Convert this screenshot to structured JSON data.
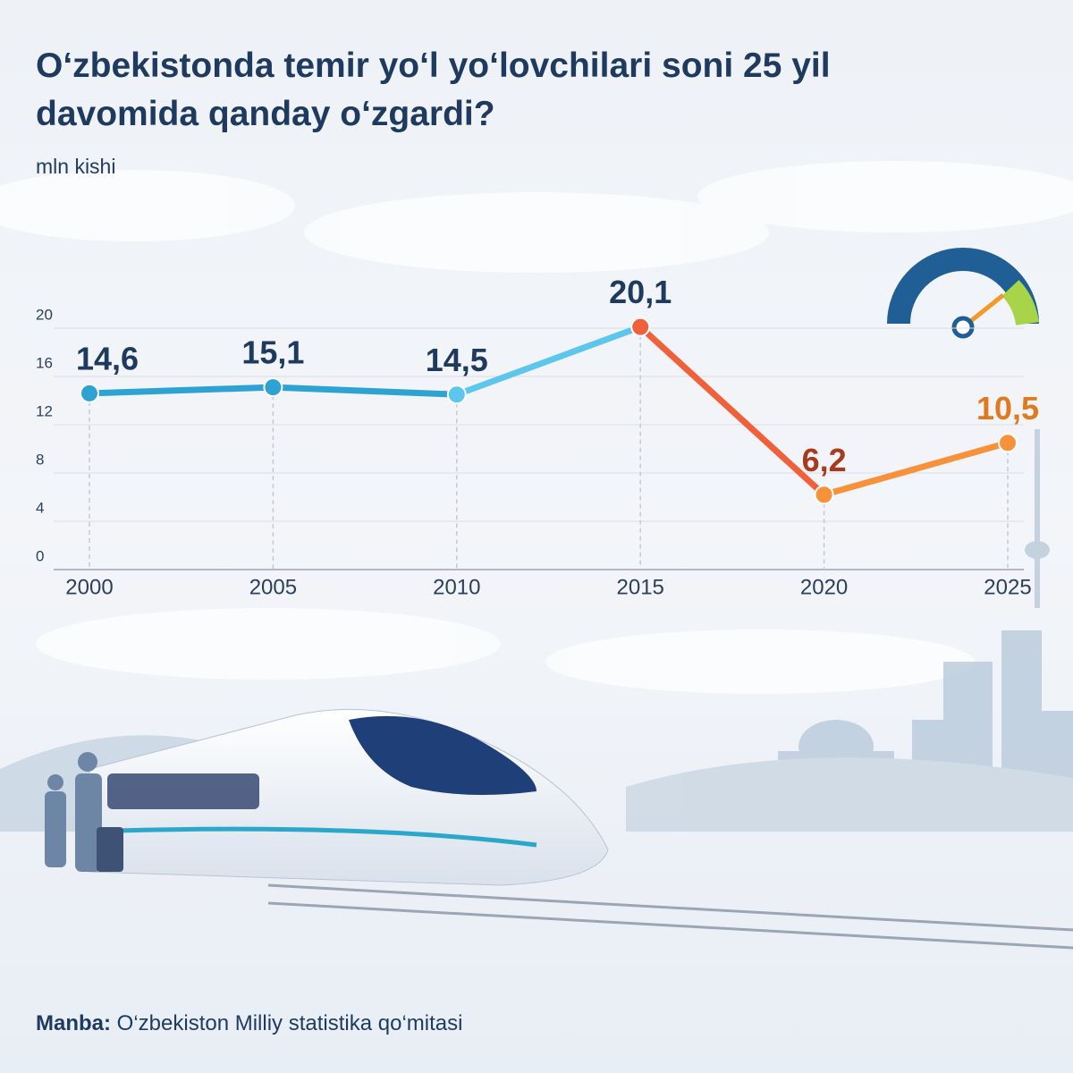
{
  "chart_data": {
    "type": "line",
    "title": "O‘zbekistonda temir yo‘l yo‘lovchilari soni 25 yil davomida qanday o‘zgardi?",
    "subtitle": "mln kishi",
    "x": [
      2000,
      2005,
      2010,
      2015,
      2020,
      2025
    ],
    "xlim": [
      2000,
      2025
    ],
    "xticks": [
      2000,
      2005,
      2010,
      2015,
      2020,
      2025
    ],
    "ylim": [
      0,
      20
    ],
    "yticks": [
      0,
      4,
      8,
      12,
      16,
      20
    ],
    "grid": true,
    "series": [
      {
        "values": [
          14.6,
          15.1,
          14.5,
          20.1,
          6.2,
          10.5
        ],
        "value_labels": [
          "14,6",
          "15,1",
          "14,5",
          "20,1",
          "6,2",
          "10,5"
        ],
        "point_colors": [
          "#2ea3d3",
          "#2ea3d3",
          "#5cc6ec",
          "#f0603a",
          "#f7923a",
          "#f7923a"
        ],
        "label_colors": [
          "#1f3a5f",
          "#1f3a5f",
          "#1f3a5f",
          "#1f3a5f",
          "#a83a1e",
          "#e07a20"
        ],
        "segment_colors": [
          "#2ea3d3",
          "#2ea3d3",
          "#5cc6ec",
          "#f0603a",
          "#f7923a"
        ]
      }
    ],
    "source_label": "Manba:",
    "source": "O‘zbekiston Milliy statistika qo‘mitasi"
  }
}
